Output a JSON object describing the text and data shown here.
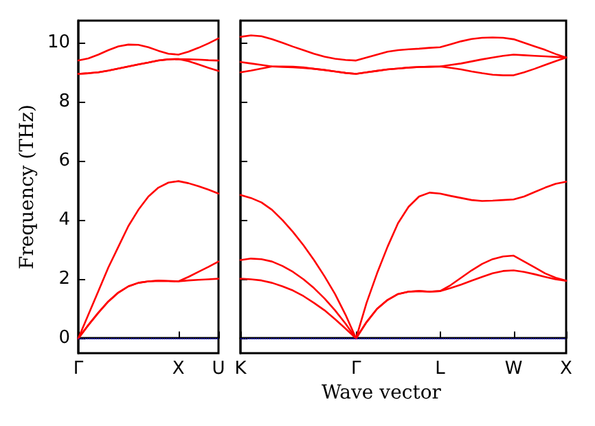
{
  "chart_data": [
    {
      "type": "line",
      "ylabel": "Frequency (THz)",
      "ylim": [
        -0.5,
        10.75
      ],
      "categories": [
        "Γ",
        null,
        null,
        null,
        null,
        null,
        null,
        null,
        null,
        null,
        "X",
        null,
        null,
        null,
        "U"
      ],
      "yticks": [
        0,
        2,
        4,
        6,
        8,
        10
      ],
      "ref_lines": [
        {
          "axis": "y",
          "value": 0,
          "color": "#0000ff",
          "line_style": "dotted"
        }
      ],
      "series": [
        {
          "color": "#ff0000",
          "values": [
            0,
            0.45,
            0.87,
            1.25,
            1.55,
            1.76,
            1.88,
            1.93,
            1.95,
            1.94,
            1.93,
            2.08,
            2.25,
            2.42,
            2.6
          ]
        },
        {
          "color": "#ff0000",
          "values": [
            0,
            0.45,
            0.87,
            1.25,
            1.55,
            1.76,
            1.88,
            1.93,
            1.95,
            1.94,
            1.93,
            1.96,
            1.98,
            2.0,
            2.02
          ]
        },
        {
          "color": "#ff0000",
          "values": [
            0,
            0.8,
            1.6,
            2.4,
            3.1,
            3.8,
            4.35,
            4.8,
            5.1,
            5.27,
            5.32,
            5.25,
            5.15,
            5.03,
            4.9
          ]
        },
        {
          "color": "#ff0000",
          "values": [
            8.95,
            8.97,
            9,
            9.06,
            9.13,
            9.2,
            9.27,
            9.33,
            9.4,
            9.44,
            9.45,
            9.38,
            9.27,
            9.15,
            9.05
          ]
        },
        {
          "color": "#ff0000",
          "values": [
            8.95,
            8.97,
            9,
            9.06,
            9.13,
            9.2,
            9.27,
            9.33,
            9.4,
            9.44,
            9.45,
            9.44,
            9.43,
            9.41,
            9.4
          ]
        },
        {
          "color": "#ff0000",
          "values": [
            9.4,
            9.47,
            9.6,
            9.75,
            9.88,
            9.94,
            9.93,
            9.85,
            9.73,
            9.63,
            9.6,
            9.7,
            9.83,
            9.98,
            10.15
          ]
        }
      ]
    },
    {
      "type": "line",
      "xlabel": "Wave vector",
      "tick_labels": "x",
      "ylim": [
        -0.5,
        10.75
      ],
      "categories": [
        "K",
        null,
        null,
        null,
        null,
        null,
        null,
        null,
        null,
        null,
        null,
        "Γ",
        null,
        null,
        null,
        null,
        null,
        null,
        null,
        "L",
        null,
        null,
        null,
        null,
        null,
        null,
        "W",
        null,
        null,
        null,
        null,
        "X"
      ],
      "yticks": [
        0,
        2,
        4,
        6,
        8,
        10
      ],
      "ref_lines": [
        {
          "axis": "y",
          "value": 0,
          "color": "#0000ff",
          "line_style": "dotted"
        }
      ],
      "series": [
        {
          "color": "#ff0000",
          "values": [
            2.02,
            2.0,
            1.96,
            1.88,
            1.76,
            1.62,
            1.43,
            1.2,
            0.95,
            0.65,
            0.33,
            0,
            0.55,
            1.0,
            1.3,
            1.5,
            1.58,
            1.6,
            1.58,
            1.6,
            1.7,
            1.82,
            1.95,
            2.08,
            2.2,
            2.28,
            2.3,
            2.25,
            2.17,
            2.08,
            2.0,
            1.95
          ]
        },
        {
          "color": "#ff0000",
          "values": [
            2.65,
            2.7,
            2.68,
            2.6,
            2.45,
            2.25,
            2.0,
            1.7,
            1.35,
            0.95,
            0.5,
            0,
            0.55,
            1.0,
            1.3,
            1.5,
            1.58,
            1.6,
            1.58,
            1.6,
            1.8,
            2.05,
            2.3,
            2.52,
            2.68,
            2.77,
            2.8,
            2.6,
            2.4,
            2.2,
            2.05,
            1.95
          ]
        },
        {
          "color": "#ff0000",
          "values": [
            4.85,
            4.75,
            4.6,
            4.35,
            4.0,
            3.6,
            3.15,
            2.65,
            2.1,
            1.5,
            0.8,
            0,
            1.2,
            2.2,
            3.1,
            3.9,
            4.45,
            4.8,
            4.93,
            4.9,
            4.82,
            4.75,
            4.68,
            4.65,
            4.66,
            4.68,
            4.7,
            4.8,
            4.95,
            5.1,
            5.23,
            5.3
          ]
        },
        {
          "color": "#ff0000",
          "values": [
            10.2,
            10.25,
            10.22,
            10.12,
            10.0,
            9.87,
            9.75,
            9.63,
            9.53,
            9.46,
            9.42,
            9.4,
            9.5,
            9.6,
            9.7,
            9.75,
            9.78,
            9.8,
            9.83,
            9.85,
            9.95,
            10.05,
            10.13,
            10.17,
            10.18,
            10.17,
            10.12,
            10.0,
            9.88,
            9.76,
            9.62,
            9.5
          ]
        },
        {
          "color": "#ff0000",
          "values": [
            9.35,
            9.3,
            9.25,
            9.2,
            9.18,
            9.17,
            9.15,
            9.12,
            9.08,
            9.03,
            8.98,
            8.95,
            9.0,
            9.05,
            9.1,
            9.13,
            9.16,
            9.18,
            9.19,
            9.2,
            9.25,
            9.3,
            9.37,
            9.44,
            9.5,
            9.56,
            9.6,
            9.58,
            9.56,
            9.54,
            9.52,
            9.5
          ]
        },
        {
          "color": "#ff0000",
          "values": [
            9.0,
            9.06,
            9.13,
            9.2,
            9.2,
            9.19,
            9.17,
            9.12,
            9.08,
            9.03,
            8.98,
            8.95,
            9.0,
            9.05,
            9.1,
            9.13,
            9.16,
            9.18,
            9.19,
            9.2,
            9.15,
            9.1,
            9.03,
            8.97,
            8.92,
            8.9,
            8.9,
            9.0,
            9.12,
            9.25,
            9.38,
            9.5
          ]
        }
      ]
    }
  ]
}
